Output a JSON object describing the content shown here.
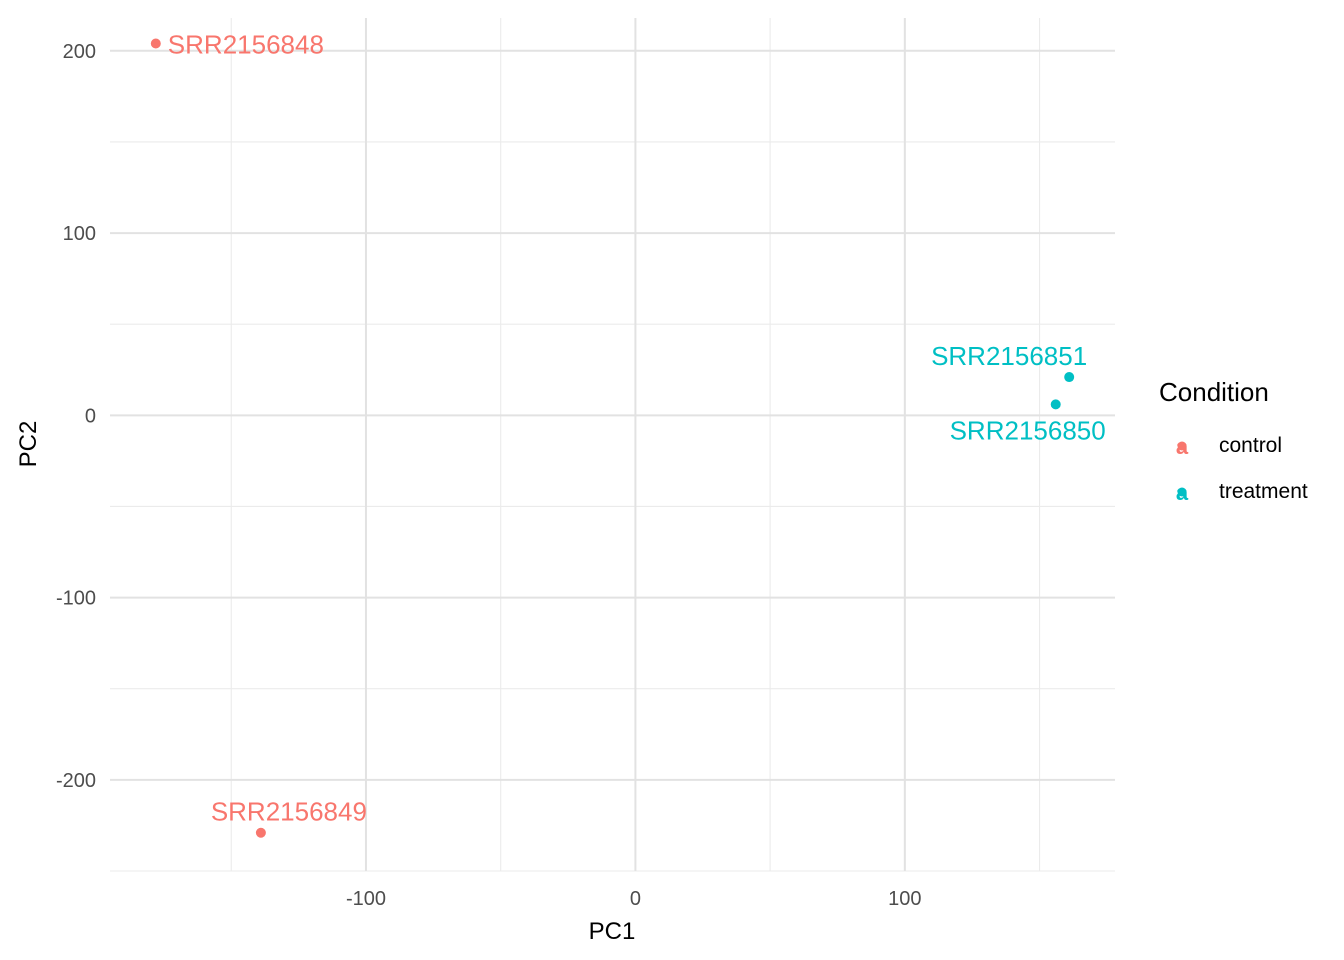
{
  "chart_data": {
    "type": "scatter",
    "title": "",
    "xlabel": "PC1",
    "ylabel": "PC2",
    "xlim": [
      -195,
      178
    ],
    "ylim": [
      -250,
      218
    ],
    "x_major_ticks": [
      -100,
      0,
      100
    ],
    "x_tick_labels": [
      "-100",
      "0",
      "100"
    ],
    "x_minor_ticks": [
      -150,
      -50,
      50,
      150
    ],
    "y_major_ticks": [
      -200,
      -100,
      0,
      100,
      200
    ],
    "y_tick_labels": [
      "-200",
      "-100",
      "0",
      "100",
      "200"
    ],
    "y_minor_ticks": [
      -250,
      -150,
      -50,
      50,
      150
    ],
    "grid": true,
    "legend": {
      "title": "Condition",
      "position": "right",
      "key_glyph": "a",
      "entries": [
        {
          "label": "control",
          "color": "#F8766D"
        },
        {
          "label": "treatment",
          "color": "#00BFC4"
        }
      ]
    },
    "points": [
      {
        "name": "SRR2156848",
        "condition": "control",
        "x": -178,
        "y": 204,
        "color": "#F8766D",
        "label_side": "right"
      },
      {
        "name": "SRR2156849",
        "condition": "control",
        "x": -139,
        "y": -229,
        "color": "#F8766D",
        "label_side": "above"
      },
      {
        "name": "SRR2156851",
        "condition": "treatment",
        "x": 161,
        "y": 21,
        "color": "#00BFC4",
        "label_side": "above-left"
      },
      {
        "name": "SRR2156850",
        "condition": "treatment",
        "x": 156,
        "y": 6,
        "color": "#00BFC4",
        "label_side": "below-left"
      }
    ]
  }
}
